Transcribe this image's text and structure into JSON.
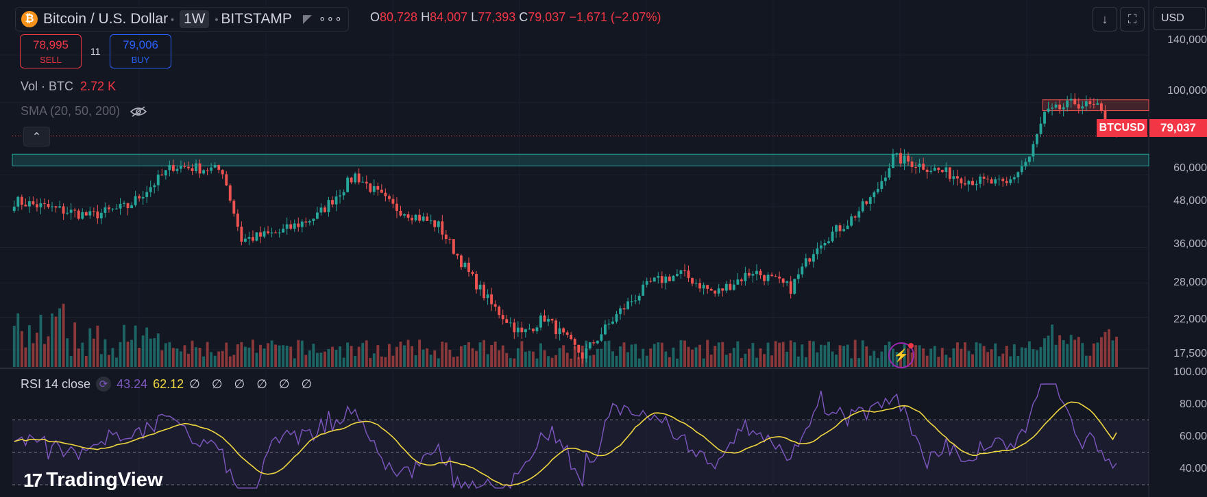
{
  "header": {
    "symbol": "Bitcoin / U.S. Dollar",
    "timeframe": "1W",
    "exchange": "BITSTAMP",
    "btc_glyph": "₿",
    "ohlc": {
      "o_label": "O",
      "o": "80,728",
      "h_label": "H",
      "h": "84,007",
      "l_label": "L",
      "l": "77,393",
      "c_label": "C",
      "c": "79,037",
      "change": "−1,671 (−2.07%)"
    }
  },
  "trade": {
    "sell_price": "78,995",
    "sell_label": "SELL",
    "spread": "11",
    "buy_price": "79,006",
    "buy_label": "BUY"
  },
  "legend": {
    "vol_label": "Vol · BTC",
    "vol_value": "2.72 K",
    "sma_label": "SMA (20, 50, 200)",
    "rsi_label": "RSI 14 close",
    "rsi_value": "43.24",
    "rsi_ma_value": "62.12",
    "rsi_empty": "∅ ∅ ∅ ∅ ∅ ∅"
  },
  "toolbar": {
    "download_icon": "download-icon",
    "fullscreen_icon": "fullscreen-icon",
    "currency": "USD"
  },
  "price_axis": [
    "140,000",
    "100,000",
    "79,037",
    "60,000",
    "48,000",
    "36,000",
    "28,000",
    "22,000",
    "17,500"
  ],
  "rsi_axis": [
    "100.00",
    "80.00",
    "60.00",
    "40.00"
  ],
  "last_price_tag": {
    "ticker": "BTCUSD",
    "price": "79,037"
  },
  "brand": "TradingView",
  "colors": {
    "up": "#26a69a",
    "down": "#ef5350",
    "rsi": "#7e57c2",
    "rsi_ma": "#f0d740",
    "bg": "#131722"
  },
  "chart_data": {
    "type": "candlestick",
    "title": "Bitcoin / U.S. Dollar · 1W · BITSTAMP",
    "y_scale": "log",
    "ylim": [
      15500,
      170000
    ],
    "zones": [
      {
        "name": "support",
        "low": 64000,
        "high": 69500,
        "color": "#26a69a"
      },
      {
        "name": "resistance",
        "low": 94500,
        "high": 102000,
        "color": "#ef5350"
      }
    ],
    "key_points": [
      {
        "week": 0,
        "close": 50000
      },
      {
        "week": 20,
        "close": 45000
      },
      {
        "week": 30,
        "close": 48000
      },
      {
        "week": 42,
        "close": 64000
      },
      {
        "week": 55,
        "close": 62000
      },
      {
        "week": 60,
        "close": 38000
      },
      {
        "week": 70,
        "close": 40000
      },
      {
        "week": 80,
        "close": 45000
      },
      {
        "week": 90,
        "close": 60000
      },
      {
        "week": 100,
        "close": 48000
      },
      {
        "week": 112,
        "close": 42000
      },
      {
        "week": 120,
        "close": 30000
      },
      {
        "week": 126,
        "close": 24000
      },
      {
        "week": 134,
        "close": 19500
      },
      {
        "week": 140,
        "close": 22000
      },
      {
        "week": 150,
        "close": 16800
      },
      {
        "week": 160,
        "close": 23000
      },
      {
        "week": 168,
        "close": 28000
      },
      {
        "week": 176,
        "close": 30000
      },
      {
        "week": 185,
        "close": 26000
      },
      {
        "week": 195,
        "close": 30500
      },
      {
        "week": 205,
        "close": 27000
      },
      {
        "week": 212,
        "close": 37000
      },
      {
        "week": 220,
        "close": 43000
      },
      {
        "week": 227,
        "close": 52000
      },
      {
        "week": 232,
        "close": 68000
      },
      {
        "week": 240,
        "close": 64000
      },
      {
        "week": 252,
        "close": 58000
      },
      {
        "week": 262,
        "close": 56000
      },
      {
        "week": 268,
        "close": 68000
      },
      {
        "week": 272,
        "close": 92000
      },
      {
        "week": 280,
        "close": 100000
      },
      {
        "week": 286,
        "close": 96000
      },
      {
        "week": 291,
        "close": 79037
      }
    ],
    "rsi_ylim": [
      25,
      100
    ],
    "rsi_bands": [
      30,
      50,
      70
    ],
    "rsi_last": 43.24,
    "rsi_ma_last": 62.12
  }
}
